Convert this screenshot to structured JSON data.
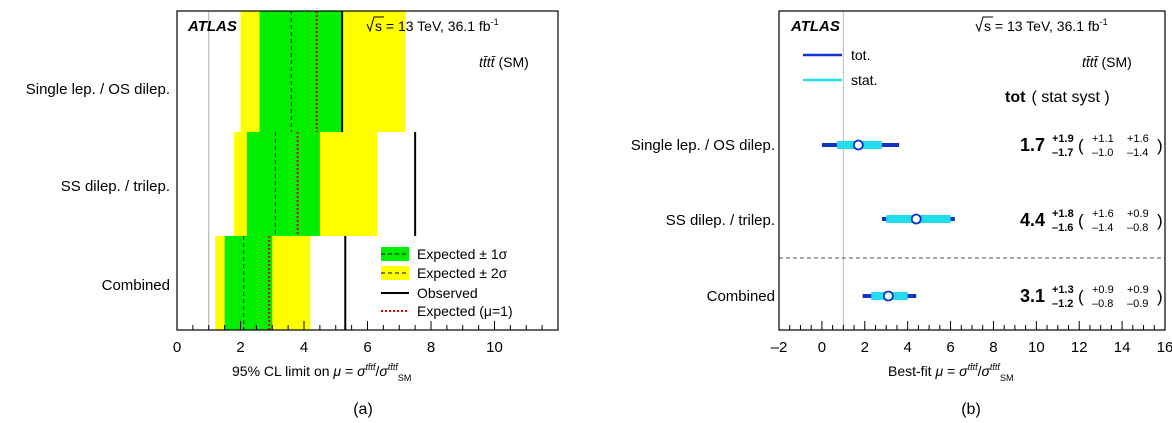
{
  "panels": {
    "a": {
      "label": "(a)"
    },
    "b": {
      "label": "(b)"
    }
  },
  "experiment": {
    "name": "ATLAS",
    "sqrt_s": "s",
    "energy_text": " = 13 TeV, 36.1 fb",
    "lumi_exp": "-1"
  },
  "process": {
    "tttt": "tt̄tt̄",
    "sm": " (SM)"
  },
  "chart_data": [
    {
      "type": "limit",
      "xlabel": "95% CL limit on",
      "xlim": [
        0,
        12
      ],
      "xticks": [
        0,
        2,
        4,
        6,
        8,
        10
      ],
      "categories": [
        "Single lep. / OS dilep.",
        "SS dilep. / trilep.",
        "Combined"
      ],
      "observed": [
        5.2,
        7.5,
        5.3
      ],
      "expected": [
        3.6,
        3.1,
        2.1
      ],
      "expected_mu1": [
        4.4,
        3.8,
        2.9
      ],
      "band1": [
        [
          2.6,
          5.2
        ],
        [
          2.2,
          4.5
        ],
        [
          1.5,
          3.0
        ]
      ],
      "band2": [
        [
          2.0,
          7.2
        ],
        [
          1.8,
          6.3
        ],
        [
          1.2,
          4.2
        ]
      ],
      "reference_line": 1,
      "legend": {
        "entries": [
          "Expected ± 1σ",
          "Expected ± 2σ",
          "Observed",
          "Expected (μ=1)"
        ],
        "placement": "bottom-right"
      },
      "colors": {
        "band1": "#00ee00",
        "band2": "#ffff00",
        "observed": "#000000",
        "expected_mu1": "#dd0000"
      }
    },
    {
      "type": "best-fit",
      "xlabel": "Best-fit",
      "xlim": [
        -2,
        16
      ],
      "xticks": [
        -2,
        0,
        2,
        4,
        6,
        8,
        10,
        12,
        14,
        16
      ],
      "categories": [
        "Single lep. / OS dilep.",
        "SS dilep. / trilep.",
        "Combined"
      ],
      "best_fit": [
        1.7,
        4.4,
        3.1
      ],
      "tot_up": [
        1.9,
        1.8,
        1.3
      ],
      "tot_down": [
        1.7,
        1.6,
        1.2
      ],
      "stat_up": [
        1.1,
        1.6,
        0.9
      ],
      "stat_down": [
        1.0,
        1.4,
        0.8
      ],
      "syst_up": [
        1.6,
        0.9,
        0.9
      ],
      "syst_down": [
        1.4,
        0.8,
        0.9
      ],
      "central_text": [
        "1.7",
        "4.4",
        "3.1"
      ],
      "tot_up_text": [
        "+1.9",
        "+1.8",
        "+1.3"
      ],
      "tot_down_text": [
        "–1.7",
        "–1.6",
        "–1.2"
      ],
      "stat_up_text": [
        "+1.1",
        "+1.6",
        "+0.9"
      ],
      "stat_down_text": [
        "–1.0",
        "–1.4",
        "–0.8"
      ],
      "syst_up_text": [
        "+1.6",
        "+0.9",
        "+0.9"
      ],
      "syst_down_text": [
        "–1.4",
        "–0.8",
        "–0.9"
      ],
      "reference_line": 1,
      "legend": {
        "entries": [
          "tot.",
          "stat."
        ],
        "placement": "top-left"
      },
      "header": {
        "tot": "tot",
        "rest": "( stat syst )"
      },
      "colors": {
        "tot": "#1133cc",
        "stat": "#22ddee"
      }
    }
  ]
}
